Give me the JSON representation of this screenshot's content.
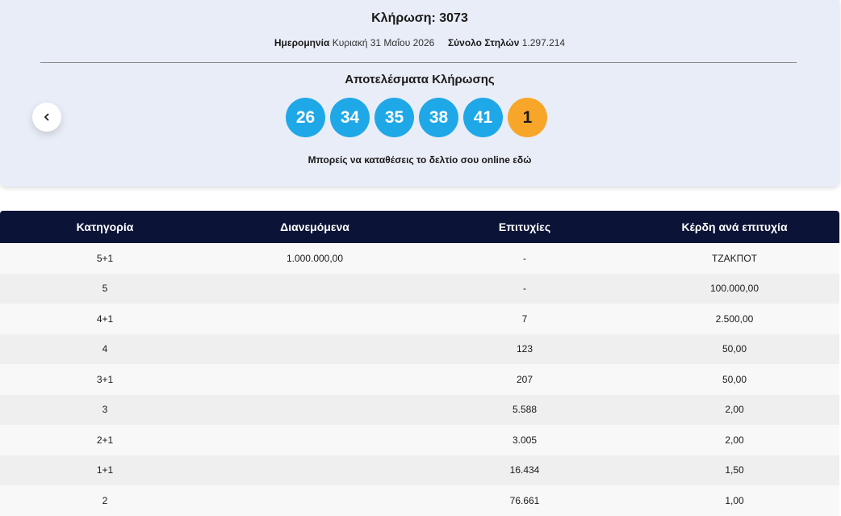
{
  "header": {
    "title": "Κλήρωση: 3073",
    "date_label": "Ημερομηνία",
    "date_value": "Κυριακή 31 Μαΐου 2026",
    "columns_label": "Σύνολο Στηλών",
    "columns_value": "1.297.214"
  },
  "results": {
    "title": "Αποτελέσματα Κλήρωσης",
    "numbers": [
      26,
      34,
      35,
      38,
      41
    ],
    "bonus": 1,
    "online_note": "Μπορείς να καταθέσεις το δελτίο σου online εδώ"
  },
  "table": {
    "headers": [
      "Κατηγορία",
      "Διανεμόμενα",
      "Επιτυχίες",
      "Κέρδη ανά επιτυχία"
    ],
    "rows": [
      [
        "5+1",
        "1.000.000,00",
        "-",
        "ΤΖΑΚΠΟΤ"
      ],
      [
        "5",
        null,
        "-",
        "100.000,00"
      ],
      [
        "4+1",
        null,
        "7",
        "2.500,00"
      ],
      [
        "4",
        null,
        "123",
        "50,00"
      ],
      [
        "3+1",
        null,
        "207",
        "50,00"
      ],
      [
        "3",
        null,
        "5.588",
        "2,00"
      ],
      [
        "2+1",
        null,
        "3.005",
        "2,00"
      ],
      [
        "1+1",
        null,
        "16.434",
        "1,50"
      ],
      [
        "2",
        null,
        "76.661",
        "1,00"
      ]
    ]
  }
}
